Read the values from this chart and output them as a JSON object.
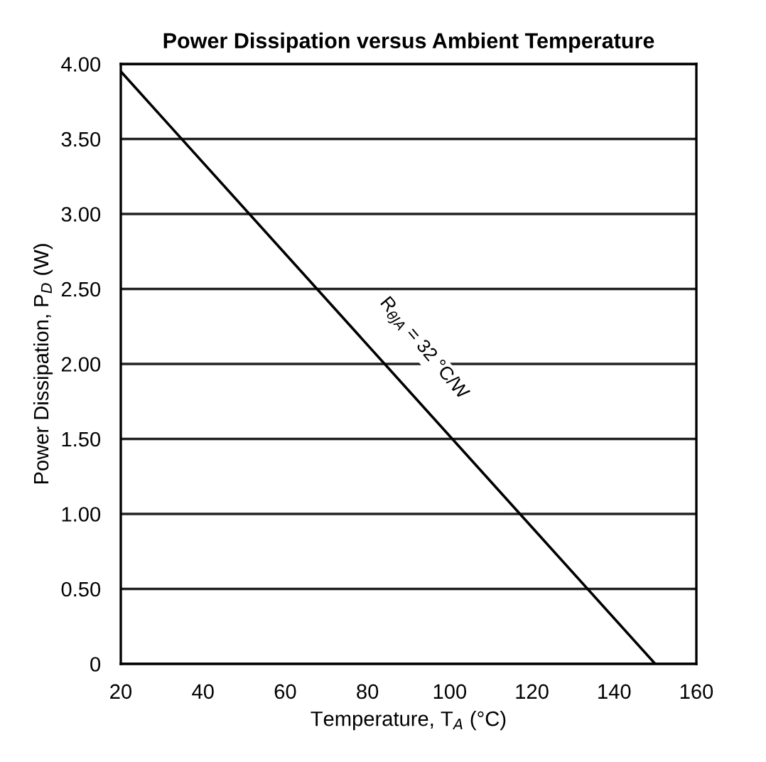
{
  "chart_data": {
    "type": "line",
    "title": "Power Dissipation versus Ambient Temperature",
    "xlabel": "Temperature, T$_{A}$ (°C)",
    "ylabel": "Power Dissipation, P$_{D}$ (W)",
    "x": [
      20,
      150
    ],
    "series": [
      {
        "color": "#000000",
        "values": [
          3.95,
          0
        ]
      }
    ],
    "annotations": [
      "R$_{θJA}$ = 32 °C/W"
    ],
    "xlim": [
      20,
      160
    ],
    "xticks": [
      20,
      40,
      60,
      80,
      100,
      120,
      140,
      160
    ],
    "ylim": [
      0,
      4
    ],
    "yticks": [
      0,
      {
        "value": 0.5,
        "label": "0.50"
      },
      {
        "value": 1,
        "label": "1.00"
      },
      {
        "value": 1.5,
        "label": "1.50"
      },
      {
        "value": 2,
        "label": "2.00"
      },
      {
        "value": 2.5,
        "label": "2.50"
      },
      {
        "value": 3,
        "label": "3.00"
      },
      {
        "value": 3.5,
        "label": "3.50"
      },
      {
        "value": 4,
        "label": "4.00"
      }
    ],
    "grid": "y",
    "marker": "none",
    "line_style": "solid"
  }
}
